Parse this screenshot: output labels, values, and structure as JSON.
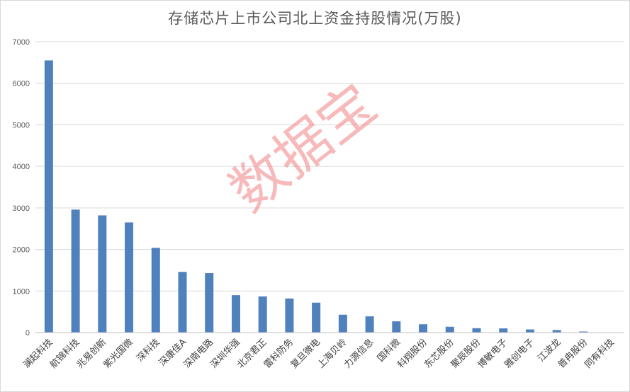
{
  "chart_data": {
    "type": "bar",
    "title": "存储芯片上市公司北上资金持股情况(万股)",
    "categories": [
      "澜起科技",
      "航锦科技",
      "兆易创新",
      "紫光国微",
      "深科技",
      "深康佳A",
      "深南电路",
      "深圳华强",
      "北京君正",
      "雷科防务",
      "复旦微电",
      "上海贝岭",
      "力源信息",
      "国科微",
      "科翔股份",
      "东芯股份",
      "聚辰股份",
      "博敏电子",
      "雅创电子",
      "江波龙",
      "普冉股份",
      "同有科技"
    ],
    "values": [
      6550,
      2960,
      2820,
      2650,
      2040,
      1460,
      1430,
      900,
      870,
      820,
      720,
      430,
      390,
      270,
      200,
      140,
      105,
      100,
      75,
      60,
      25,
      5
    ],
    "ylim": [
      0,
      7000
    ],
    "yticks": [
      0,
      1000,
      2000,
      3000,
      4000,
      5000,
      6000,
      7000
    ],
    "grid": true,
    "color": "#4f81bd",
    "watermark": "数据宝"
  }
}
